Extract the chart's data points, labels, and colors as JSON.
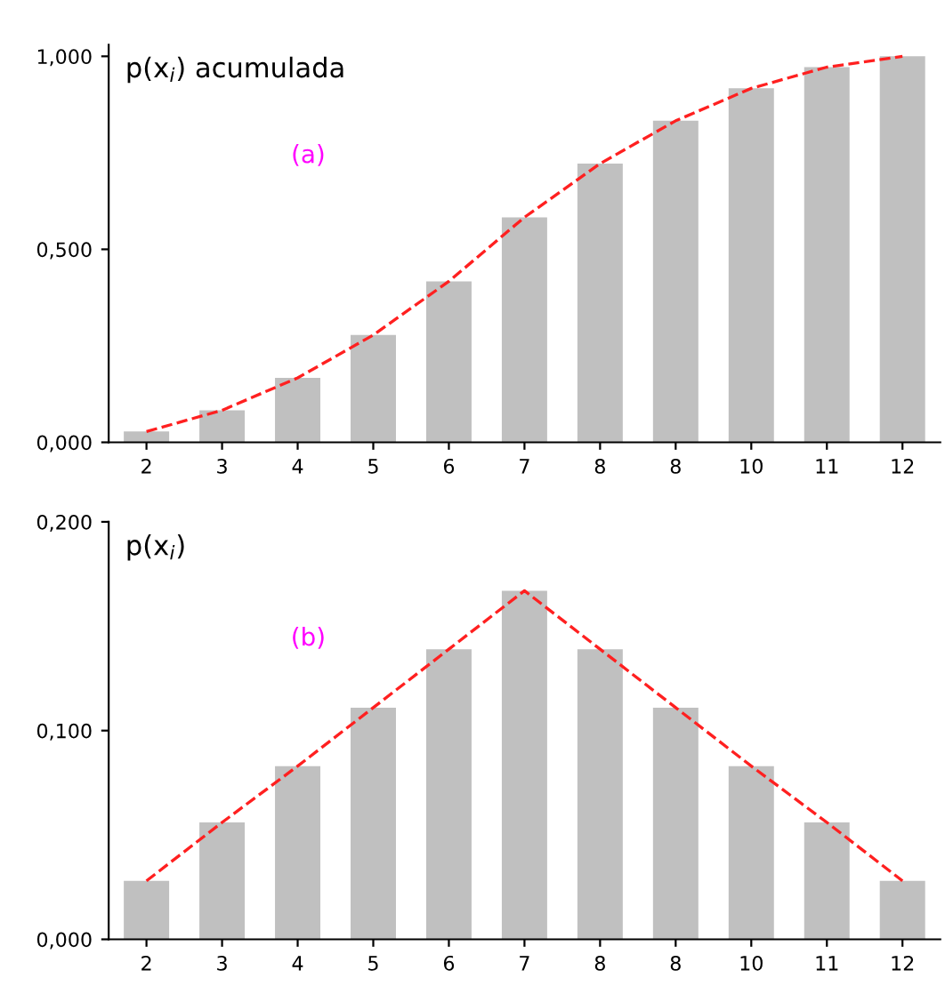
{
  "chart_data": [
    {
      "type": "bar",
      "title": "p(x$_{i}$) acumulada",
      "categories": [
        "2",
        "3",
        "4",
        "5",
        "6",
        "7",
        "8",
        "8",
        "10",
        "11",
        "12"
      ],
      "series": [
        {
          "color": "#c0c0c0",
          "values": [
            0.028,
            0.083,
            0.167,
            0.278,
            0.417,
            0.583,
            0.722,
            0.833,
            0.917,
            0.972,
            1.0
          ]
        },
        {
          "type": "line",
          "color": "#ff2020",
          "line_style": "dashed",
          "values": [
            0.028,
            0.083,
            0.167,
            0.278,
            0.417,
            0.583,
            0.722,
            0.833,
            0.917,
            0.972,
            1.0
          ]
        }
      ],
      "ylim": [
        0,
        1.03
      ],
      "yticks": [
        {
          "value": 0,
          "label": "0,000"
        },
        {
          "value": 0.5,
          "label": "0,500"
        },
        {
          "value": 1,
          "label": "1,000"
        }
      ],
      "annotations": [
        "(a)"
      ],
      "grid": false,
      "legend": false
    },
    {
      "type": "bar",
      "title": "p(x$_{i}$)",
      "categories": [
        "2",
        "3",
        "4",
        "5",
        "6",
        "7",
        "8",
        "8",
        "10",
        "11",
        "12"
      ],
      "series": [
        {
          "color": "#c0c0c0",
          "values": [
            0.028,
            0.056,
            0.083,
            0.111,
            0.139,
            0.167,
            0.139,
            0.111,
            0.083,
            0.056,
            0.028
          ]
        },
        {
          "type": "line",
          "color": "#ff2020",
          "line_style": "dashed",
          "values": [
            0.028,
            0.056,
            0.083,
            0.111,
            0.139,
            0.167,
            0.139,
            0.111,
            0.083,
            0.056,
            0.028
          ]
        }
      ],
      "ylim": [
        0,
        0.2
      ],
      "yticks": [
        {
          "value": 0,
          "label": "0,000"
        },
        {
          "value": 0.1,
          "label": "0,100"
        },
        {
          "value": 0.2,
          "label": "0,200"
        }
      ],
      "annotations": [
        "(b)"
      ],
      "grid": false,
      "legend": false
    }
  ]
}
